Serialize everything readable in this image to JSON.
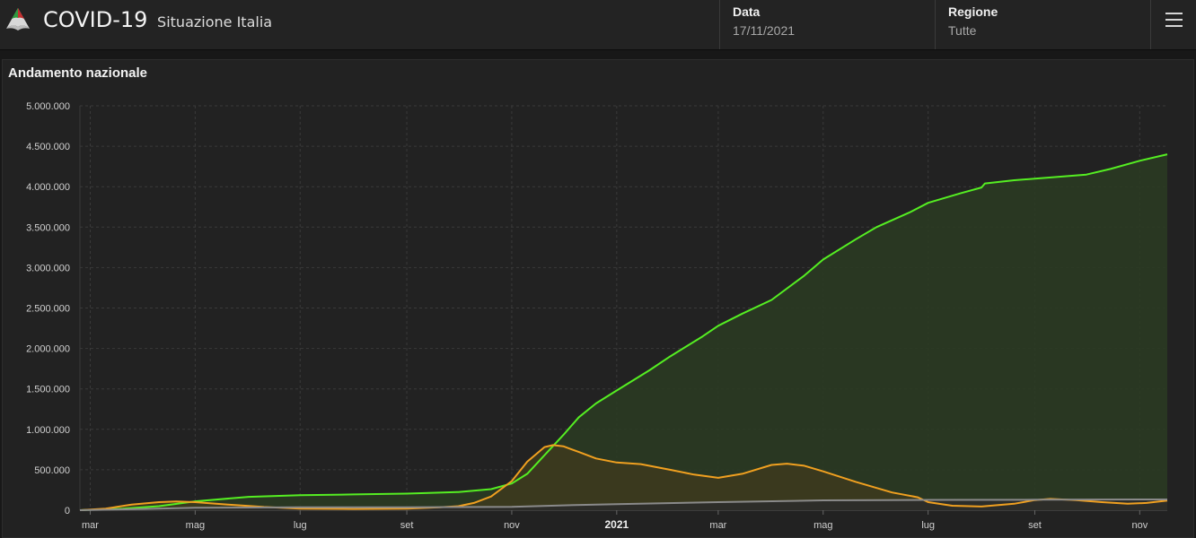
{
  "header": {
    "title": "COVID-19",
    "subtitle": "Situazione Italia",
    "date_label": "Data",
    "date_value": "17/11/2021",
    "region_label": "Regione",
    "region_value": "Tutte",
    "menu_icon": "hamburger-menu-icon",
    "logo_icon": "italy-logo-icon"
  },
  "card": {
    "title": "Andamento nazionale"
  },
  "chart_data": {
    "type": "area",
    "title": "Andamento nazionale",
    "xlabel": "",
    "ylabel": "",
    "ylim": [
      0,
      5000000
    ],
    "xlim": [
      "2020-02-24",
      "2021-11-17"
    ],
    "y_ticks": [
      0,
      500000,
      1000000,
      1500000,
      2000000,
      2500000,
      3000000,
      3500000,
      4000000,
      4500000,
      5000000
    ],
    "y_tick_labels": [
      "0",
      "500.000",
      "1.000.000",
      "1.500.000",
      "2.000.000",
      "2.500.000",
      "3.000.000",
      "3.500.000",
      "4.000.000",
      "4.500.000",
      "5.000.000"
    ],
    "x_ticks": [
      {
        "date": "2020-03-01",
        "label": "mar"
      },
      {
        "date": "2020-05-01",
        "label": "mag"
      },
      {
        "date": "2020-07-01",
        "label": "lug"
      },
      {
        "date": "2020-09-01",
        "label": "set"
      },
      {
        "date": "2020-11-01",
        "label": "nov"
      },
      {
        "date": "2021-01-01",
        "label": "2021",
        "bold": true
      },
      {
        "date": "2021-03-01",
        "label": "mar"
      },
      {
        "date": "2021-05-01",
        "label": "mag"
      },
      {
        "date": "2021-07-01",
        "label": "lug"
      },
      {
        "date": "2021-09-01",
        "label": "set"
      },
      {
        "date": "2021-11-01",
        "label": "nov"
      }
    ],
    "grid": true,
    "legend": false,
    "series": [
      {
        "color": "#55ee22",
        "fill": "#2a3b22",
        "points": [
          [
            "2020-02-24",
            0
          ],
          [
            "2020-03-20",
            20000
          ],
          [
            "2020-04-10",
            50000
          ],
          [
            "2020-05-01",
            110000
          ],
          [
            "2020-06-01",
            165000
          ],
          [
            "2020-07-01",
            185000
          ],
          [
            "2020-08-01",
            195000
          ],
          [
            "2020-09-01",
            205000
          ],
          [
            "2020-10-01",
            225000
          ],
          [
            "2020-10-20",
            260000
          ],
          [
            "2020-11-01",
            330000
          ],
          [
            "2020-11-10",
            450000
          ],
          [
            "2020-11-20",
            680000
          ],
          [
            "2020-12-01",
            930000
          ],
          [
            "2020-12-10",
            1150000
          ],
          [
            "2020-12-20",
            1320000
          ],
          [
            "2021-01-01",
            1480000
          ],
          [
            "2021-01-20",
            1730000
          ],
          [
            "2021-02-01",
            1900000
          ],
          [
            "2021-02-20",
            2150000
          ],
          [
            "2021-03-01",
            2280000
          ],
          [
            "2021-03-15",
            2430000
          ],
          [
            "2021-04-01",
            2600000
          ],
          [
            "2021-04-20",
            2900000
          ],
          [
            "2021-05-01",
            3100000
          ],
          [
            "2021-05-20",
            3350000
          ],
          [
            "2021-06-01",
            3500000
          ],
          [
            "2021-06-20",
            3680000
          ],
          [
            "2021-07-01",
            3800000
          ],
          [
            "2021-07-20",
            3920000
          ],
          [
            "2021-08-01",
            3990000
          ],
          [
            "2021-08-03",
            4040000
          ],
          [
            "2021-08-20",
            4080000
          ],
          [
            "2021-09-01",
            4100000
          ],
          [
            "2021-10-01",
            4150000
          ],
          [
            "2021-10-15",
            4220000
          ],
          [
            "2021-11-01",
            4320000
          ],
          [
            "2021-11-17",
            4400000
          ]
        ]
      },
      {
        "color": "#f0a020",
        "fill": "#3d3a1d",
        "points": [
          [
            "2020-02-24",
            0
          ],
          [
            "2020-03-10",
            20000
          ],
          [
            "2020-03-25",
            70000
          ],
          [
            "2020-04-10",
            100000
          ],
          [
            "2020-04-20",
            108000
          ],
          [
            "2020-05-01",
            100000
          ],
          [
            "2020-05-20",
            70000
          ],
          [
            "2020-06-10",
            40000
          ],
          [
            "2020-07-01",
            20000
          ],
          [
            "2020-08-01",
            15000
          ],
          [
            "2020-09-01",
            20000
          ],
          [
            "2020-09-20",
            35000
          ],
          [
            "2020-10-01",
            50000
          ],
          [
            "2020-10-10",
            90000
          ],
          [
            "2020-10-20",
            170000
          ],
          [
            "2020-11-01",
            360000
          ],
          [
            "2020-11-10",
            600000
          ],
          [
            "2020-11-20",
            780000
          ],
          [
            "2020-11-25",
            805000
          ],
          [
            "2020-12-01",
            790000
          ],
          [
            "2020-12-10",
            720000
          ],
          [
            "2020-12-20",
            640000
          ],
          [
            "2021-01-01",
            590000
          ],
          [
            "2021-01-15",
            570000
          ],
          [
            "2021-02-01",
            500000
          ],
          [
            "2021-02-15",
            440000
          ],
          [
            "2021-03-01",
            400000
          ],
          [
            "2021-03-15",
            450000
          ],
          [
            "2021-04-01",
            560000
          ],
          [
            "2021-04-10",
            575000
          ],
          [
            "2021-04-20",
            550000
          ],
          [
            "2021-05-01",
            480000
          ],
          [
            "2021-05-20",
            350000
          ],
          [
            "2021-06-10",
            220000
          ],
          [
            "2021-06-25",
            160000
          ],
          [
            "2021-07-01",
            100000
          ],
          [
            "2021-07-15",
            55000
          ],
          [
            "2021-08-01",
            45000
          ],
          [
            "2021-08-20",
            80000
          ],
          [
            "2021-09-01",
            125000
          ],
          [
            "2021-09-10",
            140000
          ],
          [
            "2021-09-25",
            125000
          ],
          [
            "2021-10-10",
            100000
          ],
          [
            "2021-10-25",
            80000
          ],
          [
            "2021-11-05",
            90000
          ],
          [
            "2021-11-17",
            120000
          ]
        ]
      },
      {
        "color": "#8a8a8a",
        "fill": "#2b2b2b",
        "points": [
          [
            "2020-02-24",
            0
          ],
          [
            "2020-04-01",
            15000
          ],
          [
            "2020-05-01",
            30000
          ],
          [
            "2020-07-01",
            35000
          ],
          [
            "2020-09-01",
            36000
          ],
          [
            "2020-11-01",
            42000
          ],
          [
            "2020-12-01",
            60000
          ],
          [
            "2021-01-01",
            75000
          ],
          [
            "2021-03-01",
            100000
          ],
          [
            "2021-05-01",
            122000
          ],
          [
            "2021-07-01",
            128000
          ],
          [
            "2021-09-01",
            130000
          ],
          [
            "2021-11-17",
            133000
          ]
        ]
      }
    ]
  }
}
